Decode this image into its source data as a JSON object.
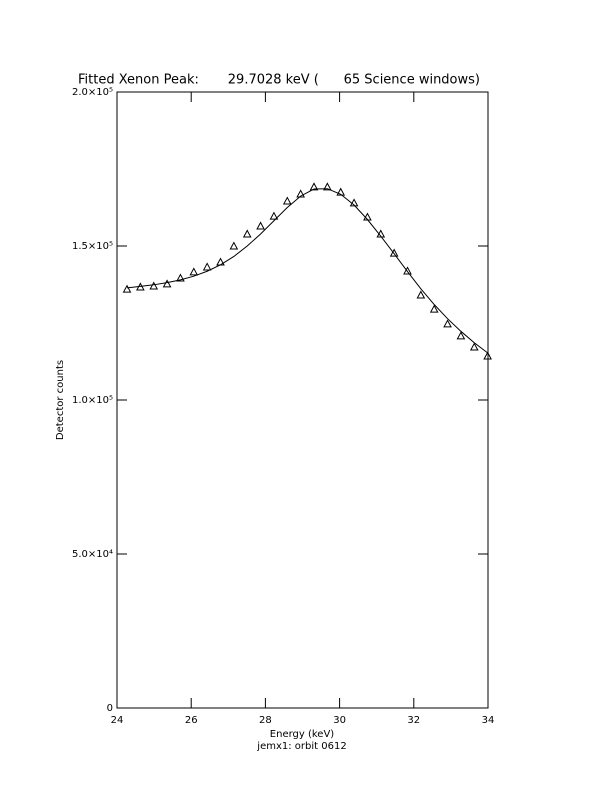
{
  "chart_data": {
    "type": "scatter",
    "title": "Fitted Xenon Peak:       29.7028 keV (      65 Science windows)",
    "x_label": "Energy (keV)",
    "y_label": "Detector counts",
    "subtitle": "jemx1: orbit 0612",
    "xlim": [
      24,
      34
    ],
    "xticks": [
      24,
      26,
      28,
      30,
      32,
      34
    ],
    "ylim": [
      0,
      200000
    ],
    "yticks": [
      0,
      {
        "value": 50000,
        "label": "5.0×10⁴"
      },
      {
        "value": 100000,
        "label": "1.0×10⁵"
      },
      {
        "value": 150000,
        "label": "1.5×10⁵"
      },
      {
        "value": 200000,
        "label": "2.0×10⁵"
      }
    ],
    "grid": false,
    "series": [
      {
        "mode": "markers",
        "marker": "triangle",
        "color": "#000000",
        "x": [
          24.27,
          24.63,
          24.99,
          25.35,
          25.71,
          26.07,
          26.43,
          26.79,
          27.15,
          27.51,
          27.87,
          28.23,
          28.59,
          28.95,
          29.31,
          29.67,
          30.03,
          30.39,
          30.75,
          31.11,
          31.47,
          31.83,
          32.19,
          32.55,
          32.91,
          33.27,
          33.63,
          33.99
        ],
        "values": [
          136000,
          136700,
          137000,
          137700,
          139600,
          141600,
          143200,
          144800,
          150000,
          153900,
          156500,
          159700,
          164600,
          166900,
          169200,
          169200,
          167500,
          164000,
          159400,
          153900,
          147700,
          141900,
          134100,
          129500,
          124700,
          120800,
          117200,
          114300
        ]
      },
      {
        "mode": "line",
        "color": "#000000",
        "x": [
          24.27,
          24.63,
          24.99,
          25.35,
          25.71,
          26.07,
          26.43,
          26.79,
          27.15,
          27.51,
          27.87,
          28.23,
          28.59,
          28.95,
          29.31,
          29.67,
          30.03,
          30.39,
          30.75,
          31.11,
          31.47,
          31.83,
          32.19,
          32.55,
          32.91,
          33.27,
          33.63,
          33.99
        ],
        "values": [
          136400,
          136900,
          137400,
          138100,
          139000,
          140200,
          141800,
          143900,
          146600,
          150000,
          153900,
          158200,
          162500,
          166200,
          168500,
          168600,
          166800,
          163300,
          158600,
          153200,
          147500,
          141700,
          136100,
          131000,
          126400,
          122300,
          118600,
          115300
        ]
      }
    ]
  }
}
